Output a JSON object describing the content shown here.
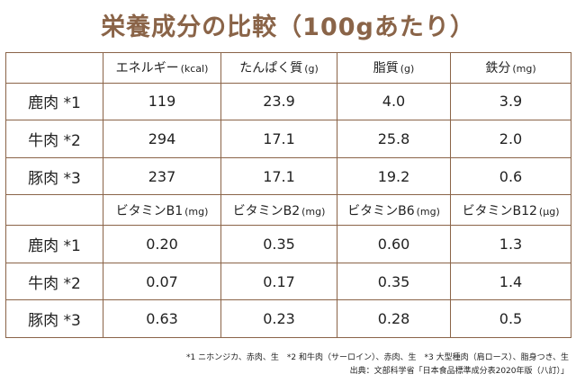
{
  "title": "栄養成分の比較（100gあたり）",
  "table1": {
    "headers": [
      {
        "name": "エネルギー",
        "unit": "(kcal)"
      },
      {
        "name": "たんぱく質",
        "unit": "(g)"
      },
      {
        "name": "脂質",
        "unit": "(g)"
      },
      {
        "name": "鉄分",
        "unit": "(mg)"
      }
    ],
    "rows": [
      {
        "label": "鹿肉 *1",
        "values": [
          "119",
          "23.9",
          "4.0",
          "3.9"
        ]
      },
      {
        "label": "牛肉 *2",
        "values": [
          "294",
          "17.1",
          "25.8",
          "2.0"
        ]
      },
      {
        "label": "豚肉 *3",
        "values": [
          "237",
          "17.1",
          "19.2",
          "0.6"
        ]
      }
    ]
  },
  "table2": {
    "headers": [
      {
        "name": "ビタミンB1",
        "unit": "(mg)"
      },
      {
        "name": "ビタミンB2",
        "unit": "(mg)"
      },
      {
        "name": "ビタミンB6",
        "unit": "(mg)"
      },
      {
        "name": "ビタミンB12",
        "unit": "(μg)"
      }
    ],
    "rows": [
      {
        "label": "鹿肉 *1",
        "values": [
          "0.20",
          "0.35",
          "0.60",
          "1.3"
        ]
      },
      {
        "label": "牛肉 *2",
        "values": [
          "0.07",
          "0.17",
          "0.35",
          "1.4"
        ]
      },
      {
        "label": "豚肉 *3",
        "values": [
          "0.63",
          "0.23",
          "0.28",
          "0.5"
        ]
      }
    ]
  },
  "footnotes": {
    "notes": "*1 ニホンジカ、赤肉、生　*2 和牛肉（サーロイン）、赤肉、生　*3 大型種肉（肩ロース）、脂身つき、生",
    "source": "出典：文部科学省「日本食品標準成分表2020年版（八訂）」"
  },
  "colors": {
    "title": "#8a6448",
    "border": "#8a6448",
    "text": "#222222"
  }
}
